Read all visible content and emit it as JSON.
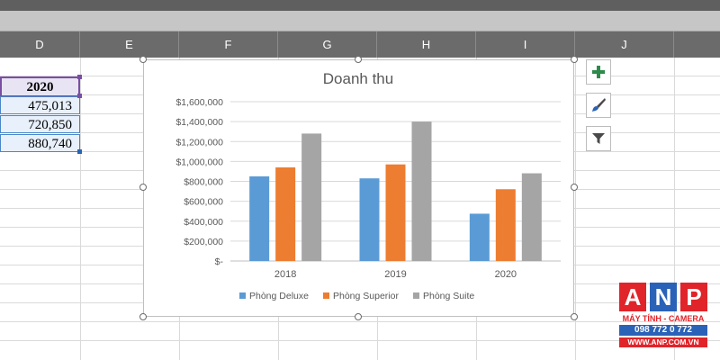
{
  "columns": [
    "D",
    "E",
    "F",
    "G",
    "H",
    "I",
    "J"
  ],
  "table": {
    "header": "2020",
    "values": [
      "475,013",
      "720,850",
      "880,740"
    ]
  },
  "chart_data": {
    "type": "bar",
    "title": "Doanh thu",
    "categories": [
      "2018",
      "2019",
      "2020"
    ],
    "series": [
      {
        "name": "Phòng Deluxe",
        "color": "#5b9bd5",
        "values": [
          850000,
          830000,
          475013
        ]
      },
      {
        "name": "Phòng Superior",
        "color": "#ed7d31",
        "values": [
          940000,
          970000,
          720850
        ]
      },
      {
        "name": "Phòng Suite",
        "color": "#a5a5a5",
        "values": [
          1280000,
          1400000,
          880740
        ]
      }
    ],
    "ylim": [
      0,
      1600000
    ],
    "yticks": [
      0,
      200000,
      400000,
      600000,
      800000,
      1000000,
      1200000,
      1400000,
      1600000
    ],
    "ytick_labels": [
      "$-",
      "$200,000",
      "$400,000",
      "$600,000",
      "$800,000",
      "$1,000,000",
      "$1,200,000",
      "$1,400,000",
      "$1,600,000"
    ],
    "grid": true,
    "legend": "bottom"
  },
  "chart_buttons": [
    {
      "icon": "plus-icon"
    },
    {
      "icon": "brush-icon"
    },
    {
      "icon": "filter-icon"
    }
  ],
  "logo": {
    "letters": [
      "A",
      "N",
      "P"
    ],
    "tagline": "MÁY TÍNH - CAMERA",
    "phone": "098 772 0 772",
    "url": "WWW.ANP.COM.VN",
    "colors": [
      "#e0242a",
      "#2a62b8",
      "#e0242a"
    ]
  }
}
